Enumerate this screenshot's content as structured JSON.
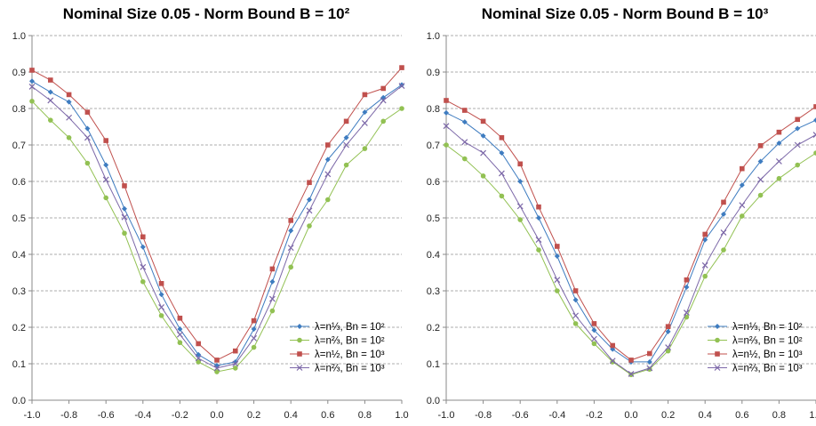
{
  "colors": {
    "s1": "#3E7CC0",
    "s2": "#92C153",
    "s3": "#C0504D",
    "s4": "#7C68A8",
    "grid": "#c8c8c8",
    "axis": "#8a8a8a"
  },
  "chart_data": [
    {
      "type": "line",
      "title": "Nominal Size 0.05 - Norm Bound B = 10²",
      "xlabel": "",
      "ylabel": "",
      "xlim": [
        -1.0,
        1.0
      ],
      "ylim": [
        0.0,
        1.0
      ],
      "x": [
        -1.0,
        -0.9,
        -0.8,
        -0.7,
        -0.6,
        -0.5,
        -0.4,
        -0.3,
        -0.2,
        -0.1,
        0.0,
        0.1,
        0.2,
        0.3,
        0.4,
        0.5,
        0.6,
        0.7,
        0.8,
        0.9,
        1.0
      ],
      "x_ticks": [
        "-1.0",
        "-0.8",
        "-0.6",
        "-0.4",
        "-0.2",
        "0.0",
        "0.2",
        "0.4",
        "0.6",
        "0.8",
        "1.0"
      ],
      "x_tick_values": [
        -1.0,
        -0.8,
        -0.6,
        -0.4,
        -0.2,
        0.0,
        0.2,
        0.4,
        0.6,
        0.8,
        1.0
      ],
      "y_ticks": [
        "0.0",
        "0.1",
        "0.2",
        "0.3",
        "0.4",
        "0.5",
        "0.6",
        "0.7",
        "0.8",
        "0.9",
        "1.0"
      ],
      "y_tick_values": [
        0.0,
        0.1,
        0.2,
        0.3,
        0.4,
        0.5,
        0.6,
        0.7,
        0.8,
        0.9,
        1.0
      ],
      "grid": true,
      "legend_position": "bottom-right",
      "series": [
        {
          "name": "λ=n⅓, Bn = 10²",
          "marker": "diamond",
          "color": "#3E7CC0",
          "values": [
            0.875,
            0.845,
            0.818,
            0.745,
            0.645,
            0.525,
            0.42,
            0.29,
            0.195,
            0.125,
            0.095,
            0.105,
            0.195,
            0.325,
            0.465,
            0.55,
            0.66,
            0.72,
            0.79,
            0.83,
            0.865
          ]
        },
        {
          "name": "λ=n⅔, Bn = 10²",
          "marker": "circle",
          "color": "#92C153",
          "values": [
            0.82,
            0.768,
            0.72,
            0.65,
            0.555,
            0.458,
            0.325,
            0.232,
            0.158,
            0.105,
            0.078,
            0.088,
            0.145,
            0.245,
            0.365,
            0.478,
            0.55,
            0.645,
            0.69,
            0.765,
            0.8
          ]
        },
        {
          "name": "λ=n½, Bn = 10³",
          "marker": "square",
          "color": "#C0504D",
          "values": [
            0.905,
            0.878,
            0.838,
            0.79,
            0.712,
            0.588,
            0.448,
            0.32,
            0.225,
            0.155,
            0.11,
            0.135,
            0.218,
            0.36,
            0.493,
            0.597,
            0.7,
            0.765,
            0.838,
            0.855,
            0.912
          ]
        },
        {
          "name": "λ=n⅔, Bn = 10³",
          "marker": "cross",
          "color": "#7C68A8",
          "values": [
            0.86,
            0.822,
            0.775,
            0.72,
            0.605,
            0.502,
            0.365,
            0.255,
            0.18,
            0.115,
            0.088,
            0.1,
            0.17,
            0.278,
            0.418,
            0.52,
            0.62,
            0.7,
            0.76,
            0.822,
            0.862
          ]
        }
      ]
    },
    {
      "type": "line",
      "title": "Nominal Size 0.05 - Norm Bound B = 10³",
      "xlabel": "",
      "ylabel": "",
      "xlim": [
        -1.0,
        1.0
      ],
      "ylim": [
        0.0,
        1.0
      ],
      "x": [
        -1.0,
        -0.9,
        -0.8,
        -0.7,
        -0.6,
        -0.5,
        -0.4,
        -0.3,
        -0.2,
        -0.1,
        0.0,
        0.1,
        0.2,
        0.3,
        0.4,
        0.5,
        0.6,
        0.7,
        0.8,
        0.9,
        1.0
      ],
      "x_ticks": [
        "-1.0",
        "-0.8",
        "-0.6",
        "-0.4",
        "-0.2",
        "0.0",
        "0.2",
        "0.4",
        "0.6",
        "0.8",
        "1.0"
      ],
      "x_tick_values": [
        -1.0,
        -0.8,
        -0.6,
        -0.4,
        -0.2,
        0.0,
        0.2,
        0.4,
        0.6,
        0.8,
        1.0
      ],
      "y_ticks": [
        "0.0",
        "0.1",
        "0.2",
        "0.3",
        "0.4",
        "0.5",
        "0.6",
        "0.7",
        "0.8",
        "0.9",
        "1.0"
      ],
      "y_tick_values": [
        0.0,
        0.1,
        0.2,
        0.3,
        0.4,
        0.5,
        0.6,
        0.7,
        0.8,
        0.9,
        1.0
      ],
      "grid": true,
      "legend_position": "bottom-right",
      "series": [
        {
          "name": "λ=n⅓, Bn = 10²",
          "marker": "diamond",
          "color": "#3E7CC0",
          "values": [
            0.788,
            0.763,
            0.725,
            0.678,
            0.6,
            0.5,
            0.395,
            0.275,
            0.192,
            0.14,
            0.105,
            0.105,
            0.188,
            0.31,
            0.44,
            0.51,
            0.59,
            0.655,
            0.705,
            0.745,
            0.768
          ]
        },
        {
          "name": "λ=n⅔, Bn = 10²",
          "marker": "circle",
          "color": "#92C153",
          "values": [
            0.7,
            0.662,
            0.615,
            0.56,
            0.495,
            0.412,
            0.3,
            0.21,
            0.155,
            0.105,
            0.07,
            0.085,
            0.135,
            0.228,
            0.34,
            0.412,
            0.505,
            0.562,
            0.608,
            0.645,
            0.678
          ]
        },
        {
          "name": "λ=n½, Bn = 10³",
          "marker": "square",
          "color": "#C0504D",
          "values": [
            0.822,
            0.795,
            0.765,
            0.72,
            0.648,
            0.53,
            0.422,
            0.3,
            0.21,
            0.15,
            0.11,
            0.128,
            0.202,
            0.33,
            0.455,
            0.543,
            0.635,
            0.698,
            0.735,
            0.77,
            0.805
          ]
        },
        {
          "name": "λ=n⅔, Bn = 10³",
          "marker": "cross",
          "color": "#7C68A8",
          "values": [
            0.752,
            0.708,
            0.678,
            0.622,
            0.532,
            0.44,
            0.33,
            0.232,
            0.168,
            0.108,
            0.072,
            0.088,
            0.145,
            0.24,
            0.37,
            0.46,
            0.535,
            0.605,
            0.655,
            0.7,
            0.728
          ]
        }
      ]
    }
  ]
}
